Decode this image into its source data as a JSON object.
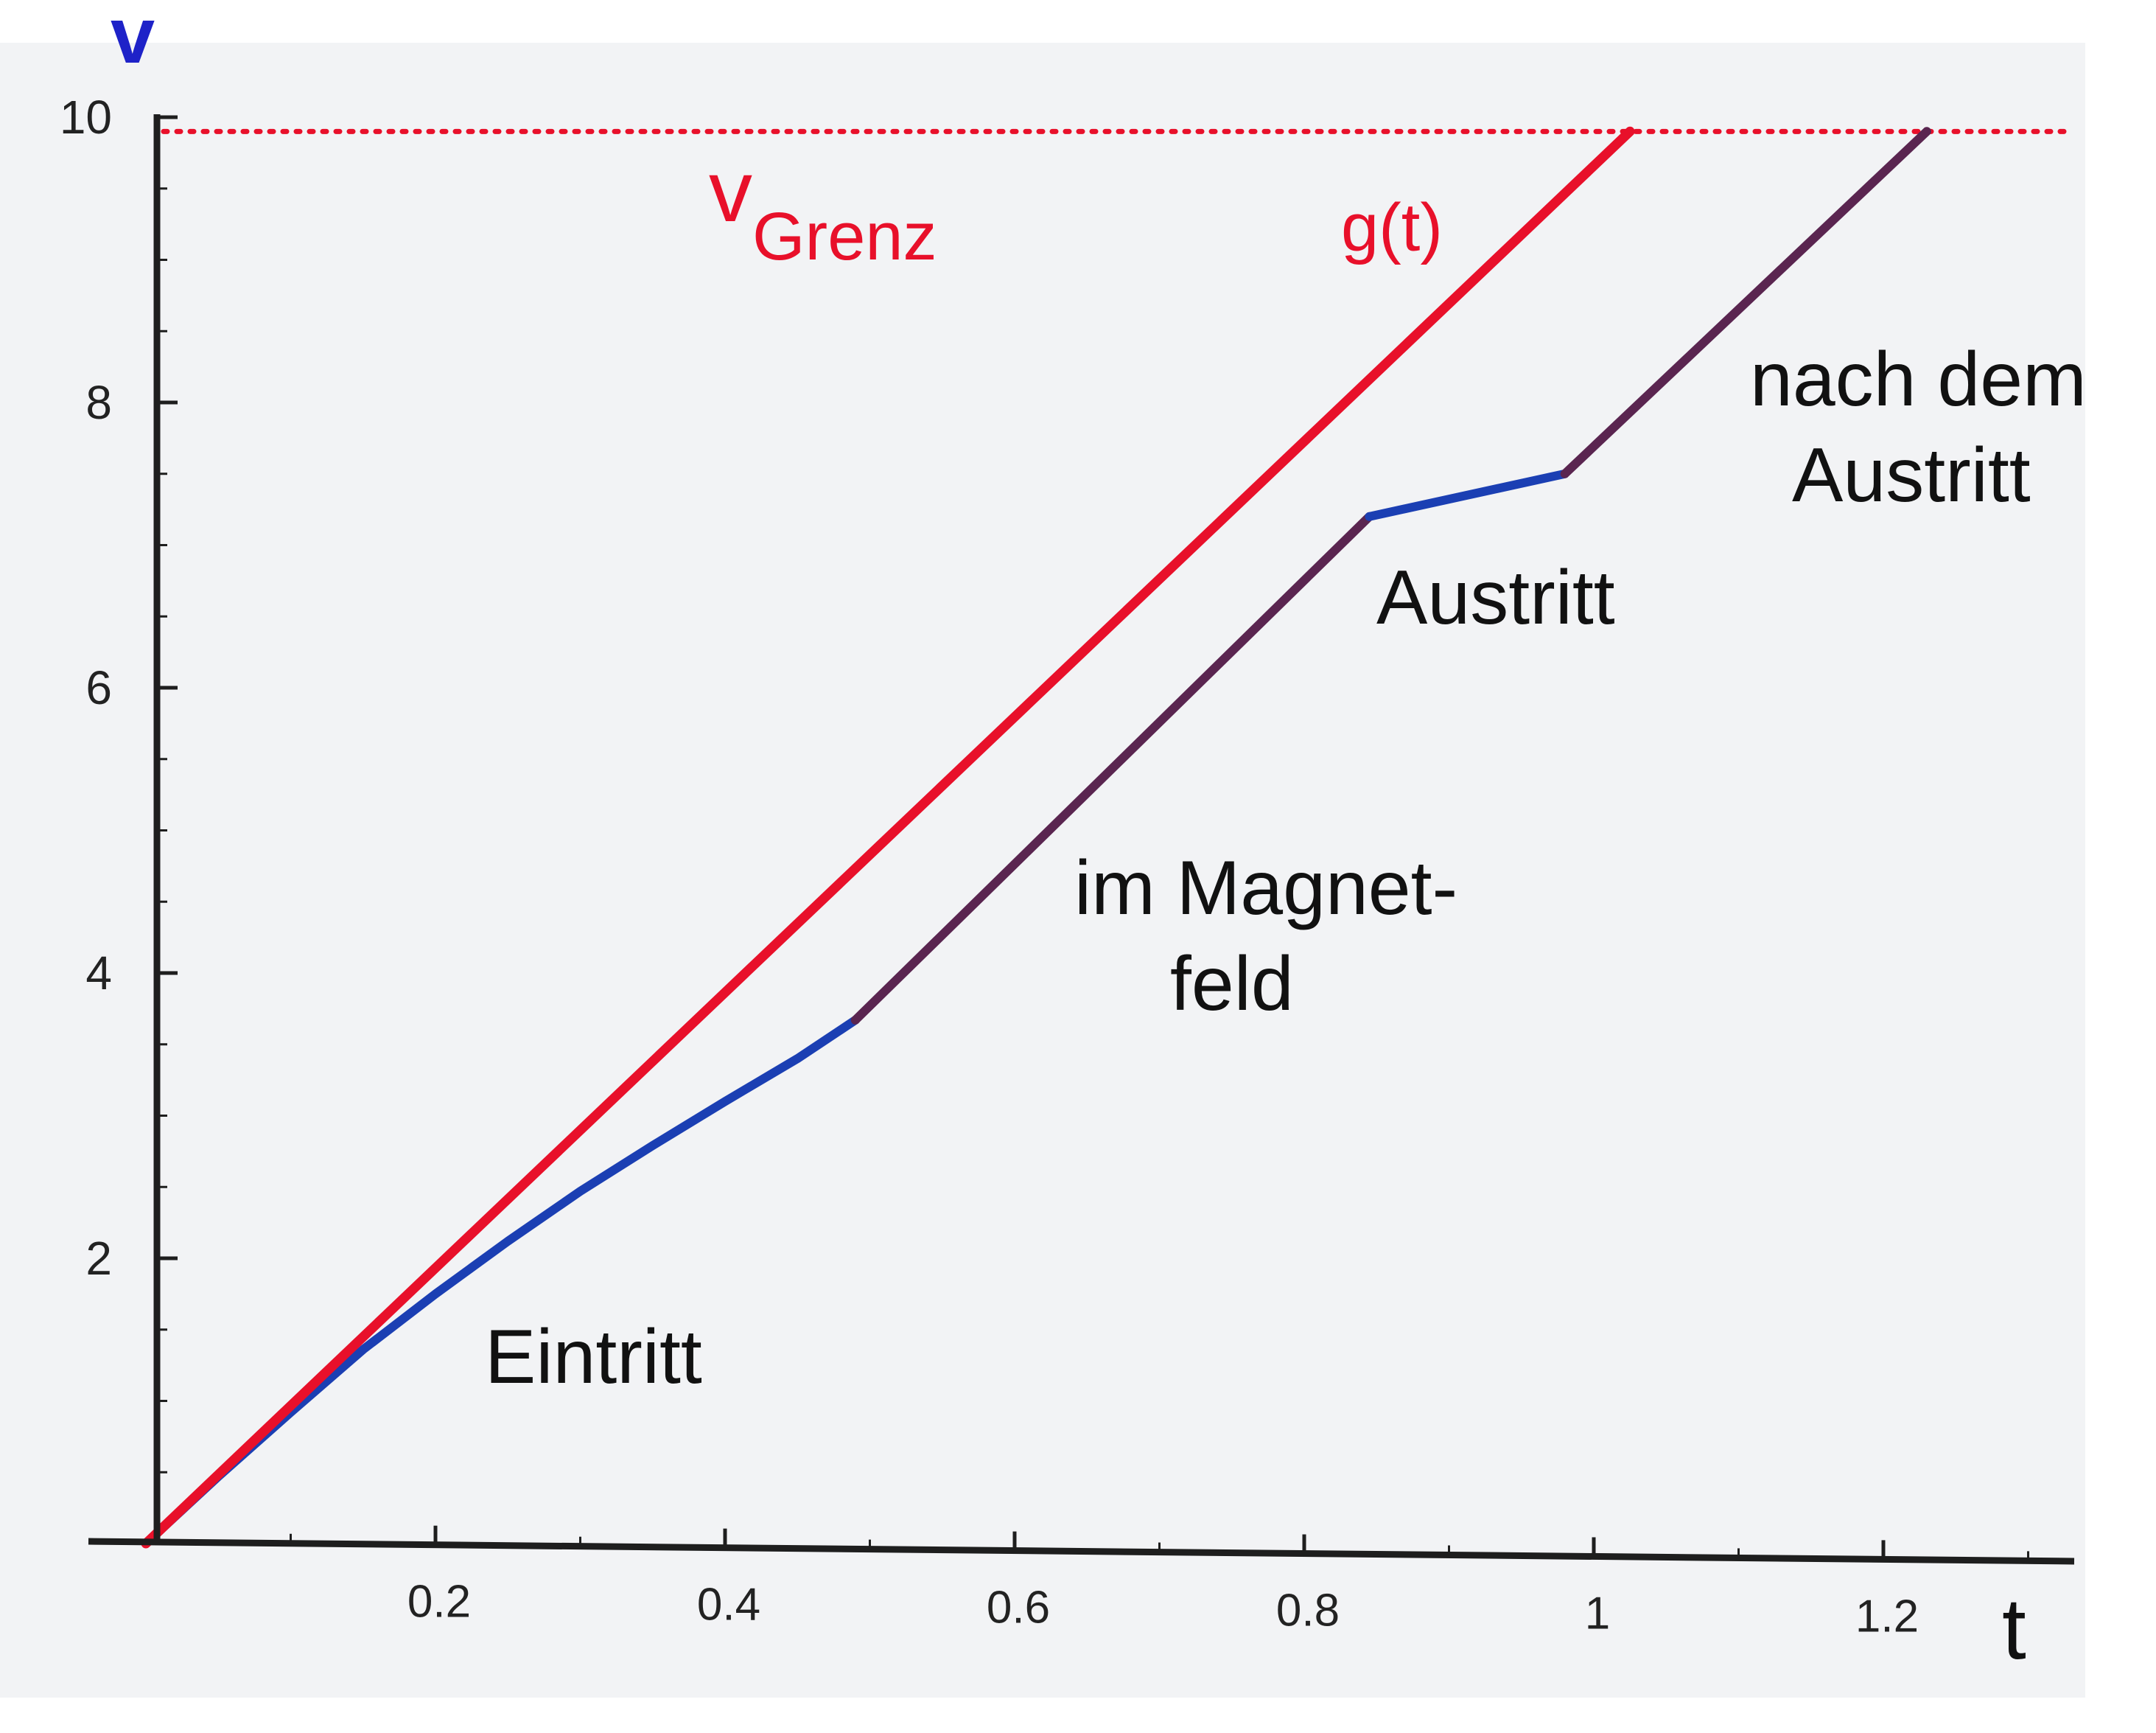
{
  "chart_data": {
    "type": "line",
    "axes": {
      "x_label": "t",
      "y_label": "v",
      "x_range": [
        0,
        1.3
      ],
      "y_range": [
        0,
        10
      ],
      "x_ticks": [
        {
          "value": 0.2,
          "label": "0.2"
        },
        {
          "value": 0.4,
          "label": "0.4"
        },
        {
          "value": 0.6,
          "label": "0.6"
        },
        {
          "value": 0.8,
          "label": "0.8"
        },
        {
          "value": 1.0,
          "label": "1"
        },
        {
          "value": 1.2,
          "label": "1.2"
        }
      ],
      "y_ticks": [
        {
          "value": 2,
          "label": "2"
        },
        {
          "value": 4,
          "label": "4"
        },
        {
          "value": 6,
          "label": "6"
        },
        {
          "value": 8,
          "label": "8"
        },
        {
          "value": 10,
          "label": "10"
        }
      ],
      "grid": false
    },
    "reference_line": {
      "label_main": "v",
      "label_sub": "Grenz",
      "y": 9.9,
      "style": "dotted",
      "color": "#e8102a"
    },
    "series": [
      {
        "name": "g(t)",
        "color": "#e8102a",
        "points": [
          [
            0,
            0
          ],
          [
            1.025,
            9.9
          ]
        ]
      }
    ],
    "velocity_curve": [
      {
        "phase": "Eintritt",
        "color": "#1b3fb3",
        "points": [
          [
            0,
            0
          ],
          [
            0.05,
            0.47
          ],
          [
            0.1,
            0.92
          ],
          [
            0.15,
            1.36
          ],
          [
            0.2,
            1.75
          ],
          [
            0.25,
            2.12
          ],
          [
            0.3,
            2.47
          ],
          [
            0.35,
            2.79
          ],
          [
            0.4,
            3.1
          ],
          [
            0.45,
            3.4
          ],
          [
            0.49,
            3.67
          ]
        ]
      },
      {
        "phase": "im Magnetfeld",
        "color": "#5a2550",
        "points": [
          [
            0.49,
            3.67
          ],
          [
            0.845,
            7.2
          ]
        ]
      },
      {
        "phase": "Austritt",
        "color": "#1b3fb3",
        "points": [
          [
            0.845,
            7.2
          ],
          [
            0.98,
            7.5
          ]
        ]
      },
      {
        "phase": "nach dem Austritt",
        "color": "#5a2550",
        "points": [
          [
            0.98,
            7.5
          ],
          [
            1.23,
            9.9
          ]
        ]
      }
    ],
    "annotations": {
      "eintritt": "Eintritt",
      "magnetfeld_line1": "im Magnet-",
      "magnetfeld_line2": "feld",
      "austritt": "Austritt",
      "nach_line1": "nach dem",
      "nach_line2": "Austritt"
    },
    "colors": {
      "axis": "#1e1e1e",
      "y_label": "#1e22c8",
      "red": "#e8102a",
      "text": "#111111"
    }
  }
}
